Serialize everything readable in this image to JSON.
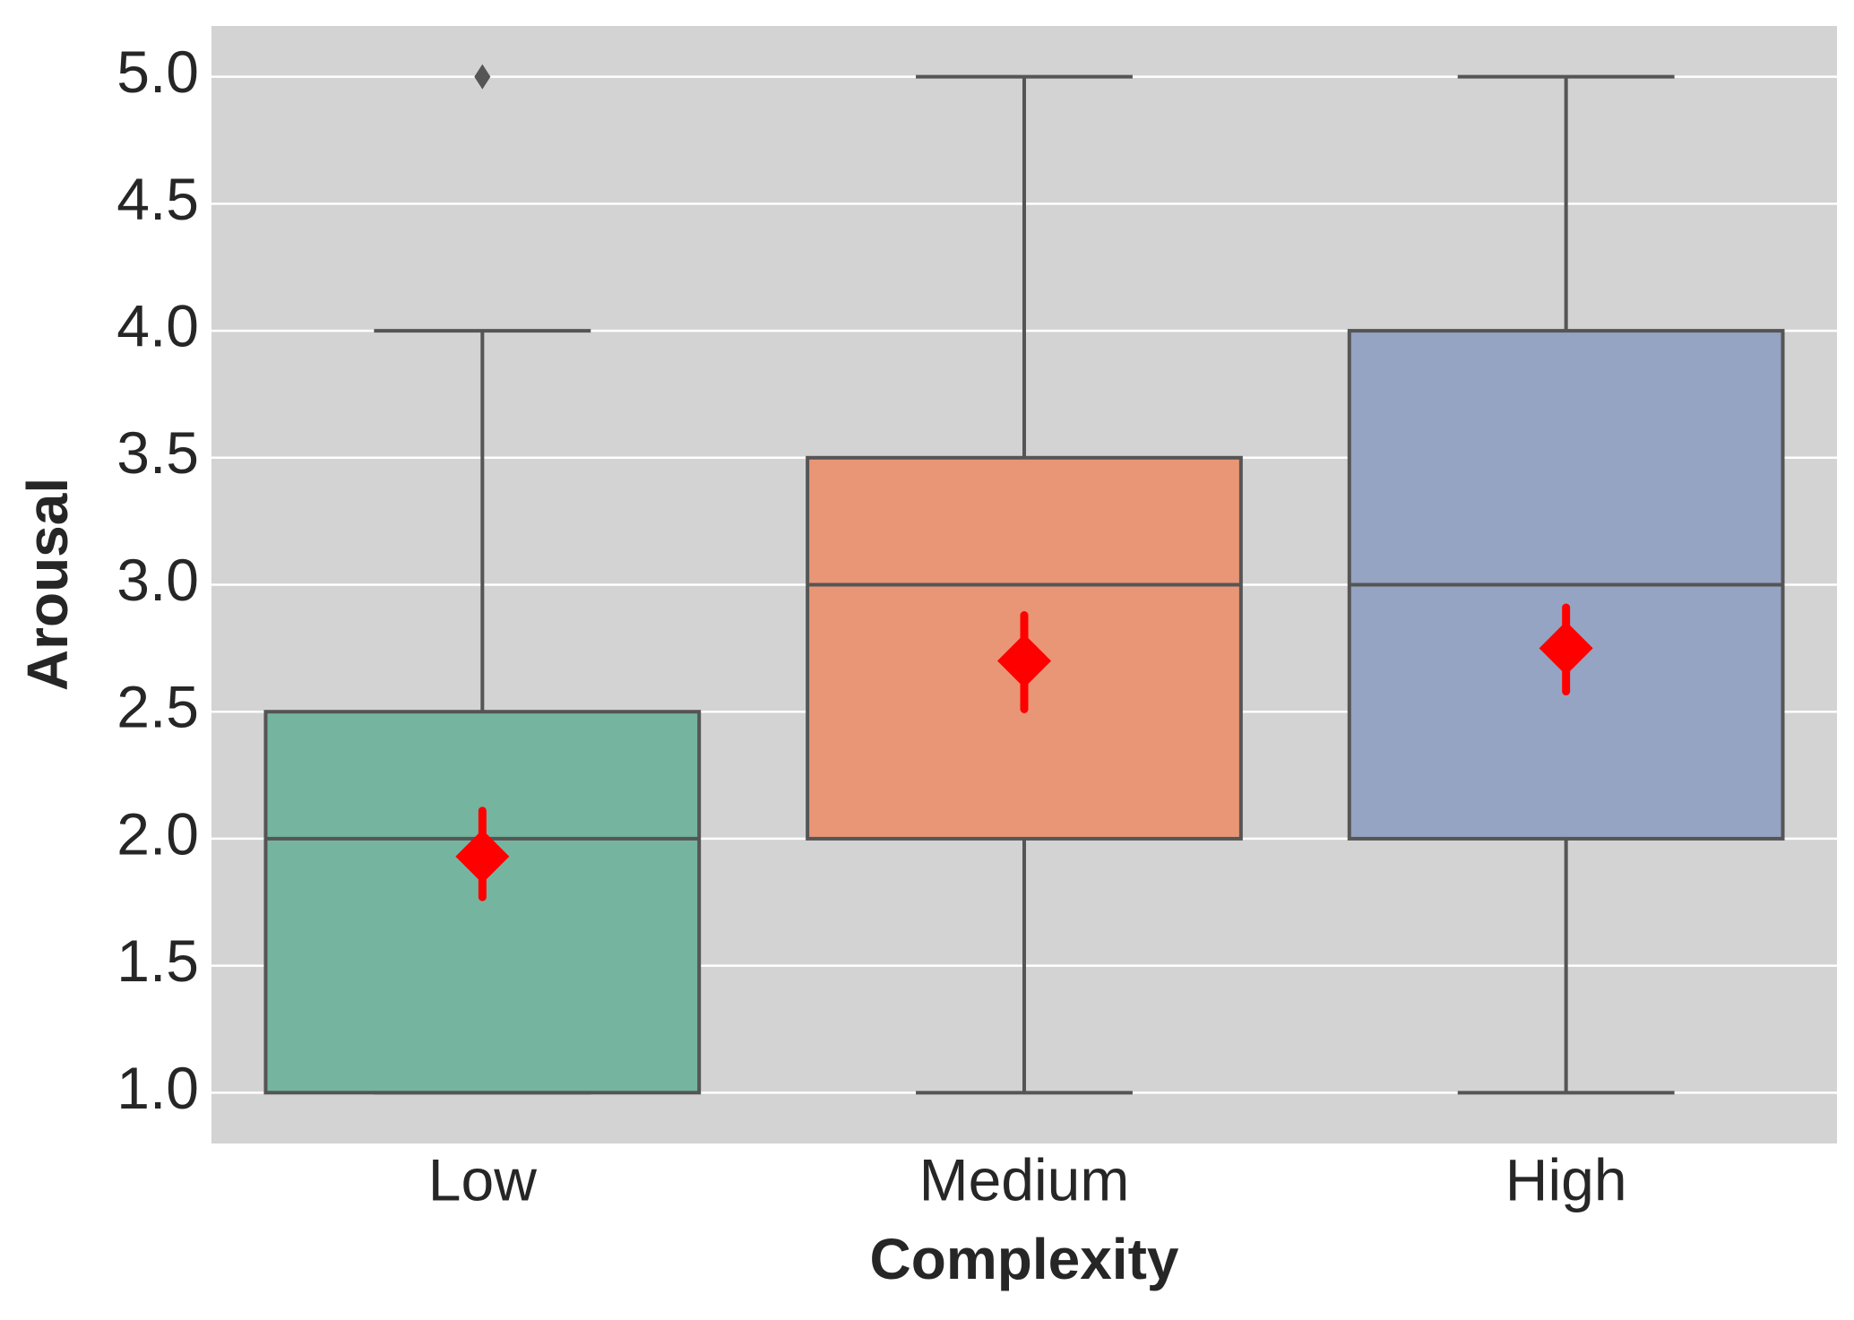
{
  "chart_data": {
    "type": "box",
    "x_label": "Complexity",
    "y_label": "Arousal",
    "categories": [
      "Low",
      "Medium",
      "High"
    ],
    "boxes": [
      {
        "whislo": 1.0,
        "q1": 1.0,
        "med": 2.0,
        "q3": 2.5,
        "whishi": 4.0,
        "fliers": [
          5.0
        ],
        "mean": 1.93,
        "mean_ci": [
          1.77,
          2.11
        ],
        "color": "#75b5a0"
      },
      {
        "whislo": 1.0,
        "q1": 2.0,
        "med": 3.0,
        "q3": 3.5,
        "whishi": 5.0,
        "fliers": [],
        "mean": 2.7,
        "mean_ci": [
          2.51,
          2.88
        ],
        "color": "#e99676"
      },
      {
        "whislo": 1.0,
        "q1": 2.0,
        "med": 3.0,
        "q3": 4.0,
        "whishi": 5.0,
        "fliers": [],
        "mean": 2.75,
        "mean_ci": [
          2.58,
          2.91
        ],
        "color": "#95a4c2"
      }
    ],
    "mean_color": "#ff0000",
    "ylim": [
      0.8,
      5.2
    ],
    "yticks": [
      {
        "value": 1,
        "label": "1.0"
      },
      1.5,
      {
        "value": 2,
        "label": "2.0"
      },
      2.5,
      {
        "value": 3,
        "label": "3.0"
      },
      3.5,
      {
        "value": 4,
        "label": "4.0"
      },
      4.5,
      {
        "value": 5,
        "label": "5.0"
      }
    ],
    "grid": true
  }
}
